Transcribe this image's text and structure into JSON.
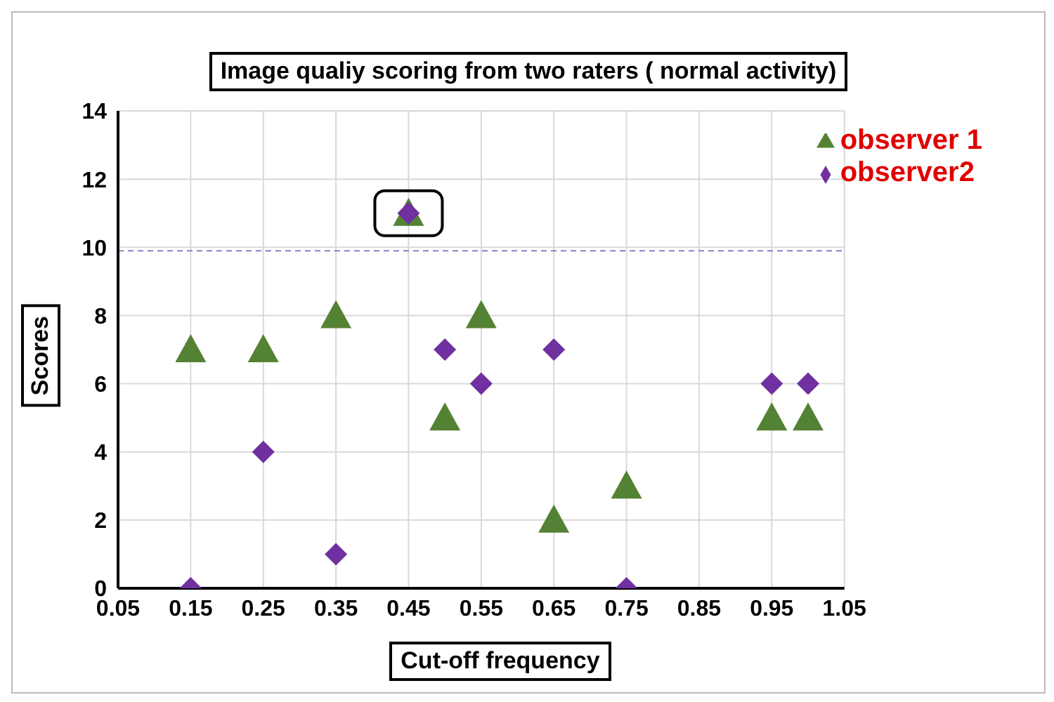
{
  "chart_data": {
    "type": "scatter",
    "title": "Image qualiy scoring from two raters ( normal activity)",
    "xlabel": "Cut-off frequency",
    "ylabel": "Scores",
    "x": [
      0.15,
      0.25,
      0.35,
      0.45,
      0.5,
      0.55,
      0.65,
      0.75,
      0.95,
      1.0
    ],
    "series": [
      {
        "name": "observer 1",
        "color": "#548235",
        "marker": "triangle",
        "values": [
          7,
          7,
          8,
          11,
          5,
          8,
          2,
          3,
          5,
          5
        ]
      },
      {
        "name": "observer2",
        "color": "#7030a0",
        "marker": "diamond",
        "values": [
          0,
          4,
          1,
          11,
          7,
          6,
          7,
          0,
          6,
          6
        ]
      }
    ],
    "xlim": [
      0.05,
      1.05
    ],
    "xticks": [
      0.05,
      0.15,
      0.25,
      0.35,
      0.45,
      0.55,
      0.65,
      0.75,
      0.85,
      0.95,
      1.05
    ],
    "ylim": [
      0,
      14
    ],
    "yticks": [
      0,
      2,
      4,
      6,
      8,
      10,
      12,
      14
    ],
    "ref_lines": [
      {
        "axis": "y",
        "value": 9.9,
        "color": "#8e7cc3",
        "line_style": "dashed"
      }
    ],
    "grid": true,
    "legend": "top right"
  }
}
